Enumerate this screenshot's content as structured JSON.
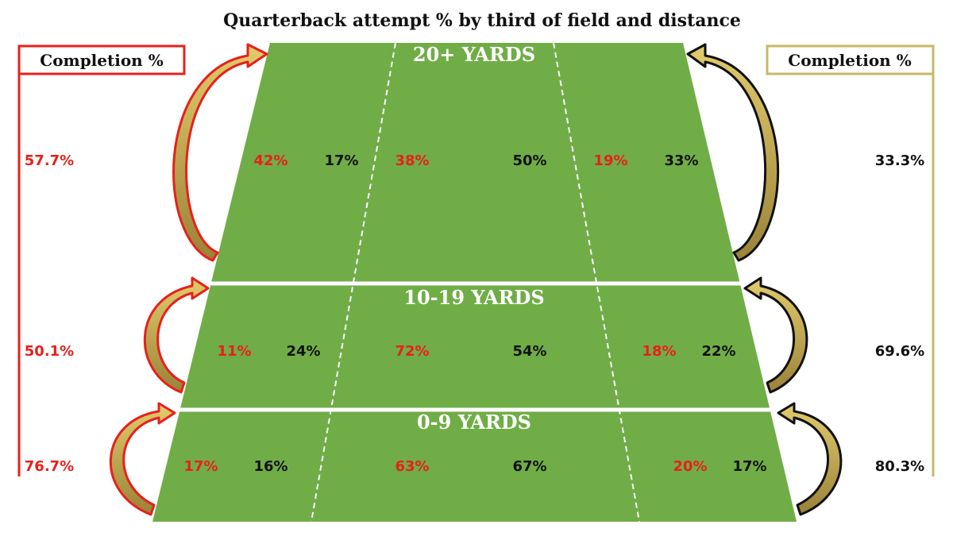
{
  "title": "Quarterback attempt % by third of field and distance",
  "left_header": "Completion %",
  "right_header": "Completion %",
  "colors": {
    "field": "#70ad47",
    "left_accent": "#e8201a",
    "right_accent": "#c8b86a",
    "arrow_fill": "#b39a48",
    "red_text": "#e8201a",
    "dark_text": "#111111",
    "white_text": "#ffffff"
  },
  "zones": [
    {
      "label": "20+ YARDS",
      "left_completion": "57.7%",
      "right_completion": "33.3%",
      "cells": [
        {
          "red": "42%",
          "black": "17%"
        },
        {
          "red": "38%",
          "black": "50%"
        },
        {
          "red": "19%",
          "black": "33%"
        }
      ]
    },
    {
      "label": "10-19 YARDS",
      "left_completion": "50.1%",
      "right_completion": "69.6%",
      "cells": [
        {
          "red": "11%",
          "black": "24%"
        },
        {
          "red": "72%",
          "black": "54%"
        },
        {
          "red": "18%",
          "black": "22%"
        }
      ]
    },
    {
      "label": "0-9 YARDS",
      "left_completion": "76.7%",
      "right_completion": "80.3%",
      "cells": [
        {
          "red": "17%",
          "black": "16%"
        },
        {
          "red": "63%",
          "black": "67%"
        },
        {
          "red": "20%",
          "black": "17%"
        }
      ]
    }
  ]
}
